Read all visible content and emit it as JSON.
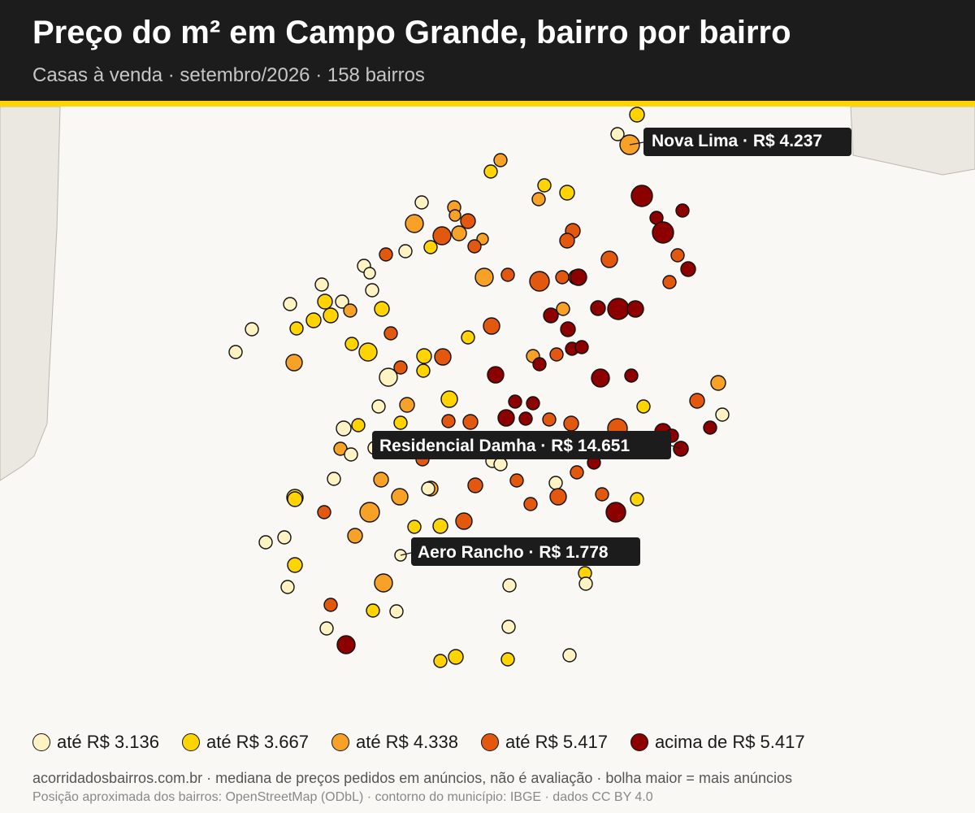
{
  "title": "Preço do m² em Campo Grande, bairro por bairro",
  "subtitle": "Casas à venda · setembro/2026 · 158 bairros",
  "legend": [
    {
      "label": "até R$ 3.136",
      "color": "#fff3c4"
    },
    {
      "label": "até R$ 3.667",
      "color": "#ffd400"
    },
    {
      "label": "até R$ 4.338",
      "color": "#f7a226"
    },
    {
      "label": "até R$ 5.417",
      "color": "#e3580f"
    },
    {
      "label": "acima de R$ 5.417",
      "color": "#8c0000"
    }
  ],
  "callouts": [
    {
      "text": "Nova Lima · R$ 4.237"
    },
    {
      "text": "Residencial Damha · R$ 14.651"
    },
    {
      "text": "Aero Rancho · R$ 1.778"
    }
  ],
  "footer": {
    "line1": "acorridadosbairros.com.br · mediana de preços pedidos em anúncios, não é avaliação · bolha maior = mais anúncios",
    "line2": "Posição aproximada dos bairros: OpenStreetMap (ODbL) · contorno do município: IBGE · dados CC BY 4.0"
  }
}
